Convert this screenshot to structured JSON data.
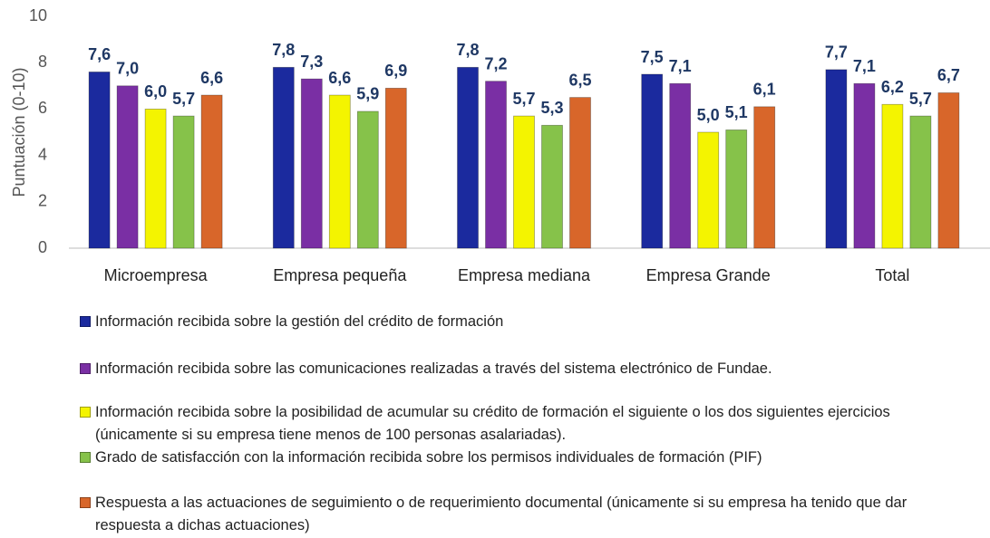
{
  "chart_data": {
    "type": "bar",
    "y_label": "Puntuación (0-10)",
    "categories": [
      "Microempresa",
      "Empresa pequeña",
      "Empresa mediana",
      "Empresa Grande",
      "Total"
    ],
    "series": [
      {
        "name": "Información recibida sobre la gestión del crédito de formación",
        "color": "#1b2a9e",
        "values": [
          7.6,
          7.8,
          7.8,
          7.5,
          7.7
        ],
        "value_labels": [
          "7,6",
          "7,8",
          "7,8",
          "7,5",
          "7,7"
        ]
      },
      {
        "name": "Información recibida sobre las comunicaciones realizadas a través del sistema electrónico de Fundae.",
        "color": "#7a2fa4",
        "values": [
          7.0,
          7.3,
          7.2,
          7.1,
          7.1
        ],
        "value_labels": [
          "7,0",
          "7,3",
          "7,2",
          "7,1",
          "7,1"
        ]
      },
      {
        "name": "Información recibida sobre la posibilidad de acumular su crédito de formación el siguiente o los dos siguientes ejercicios (únicamente si su empresa tiene menos de 100 personas asalariadas).",
        "color": "#f4f400",
        "values": [
          6.0,
          6.6,
          5.7,
          5.0,
          6.2
        ],
        "value_labels": [
          "6,0",
          "6,6",
          "5,7",
          "5,0",
          "6,2"
        ]
      },
      {
        "name": "Grado de satisfacción con la información recibida sobre los permisos individuales de formación (PIF)",
        "color": "#86c24a",
        "values": [
          5.7,
          5.9,
          5.3,
          5.1,
          5.7
        ],
        "value_labels": [
          "5,7",
          "5,9",
          "5,3",
          "5,1",
          "5,7"
        ]
      },
      {
        "name": "Respuesta a las actuaciones de seguimiento o de requerimiento documental (únicamente si su empresa ha tenido que dar respuesta a dichas actuaciones)",
        "color": "#d8662a",
        "values": [
          6.6,
          6.9,
          6.5,
          6.1,
          6.7
        ],
        "value_labels": [
          "6,6",
          "6,9",
          "6,5",
          "6,1",
          "6,7"
        ]
      }
    ],
    "ylim": [
      0,
      10
    ],
    "yticks": [
      0,
      2,
      4,
      6,
      8,
      10
    ],
    "grid": false
  }
}
